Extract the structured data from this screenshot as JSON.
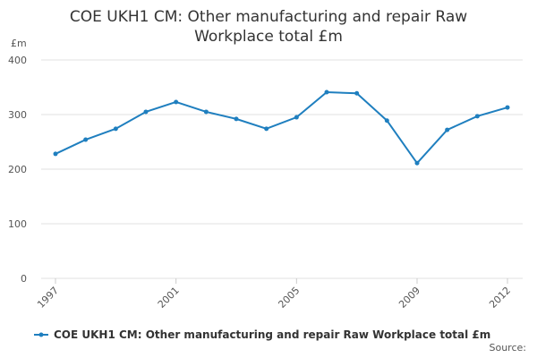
{
  "chart_data": {
    "type": "line",
    "title": "COE UKH1 CM: Other manufacturing and repair Raw Workplace total £m",
    "y_label": "£m",
    "source": "Source:",
    "x": [
      1997,
      1998,
      1999,
      2000,
      2001,
      2002,
      2003,
      2004,
      2005,
      2006,
      2007,
      2008,
      2009,
      2010,
      2011,
      2012
    ],
    "series": [
      {
        "name": "COE UKH1 CM: Other manufacturing and repair Raw Workplace total £m",
        "color": "#1f7fbf",
        "values": [
          228,
          254,
          274,
          305,
          323,
          305,
          292,
          274,
          295,
          341,
          339,
          289,
          211,
          272,
          297,
          313
        ]
      }
    ],
    "xlim": [
      1997,
      2012
    ],
    "xticks": [
      1997,
      2001,
      2005,
      2009,
      2012
    ],
    "ylim": [
      0,
      400
    ],
    "yticks": [
      0,
      100,
      200,
      300,
      400
    ],
    "grid": true
  }
}
